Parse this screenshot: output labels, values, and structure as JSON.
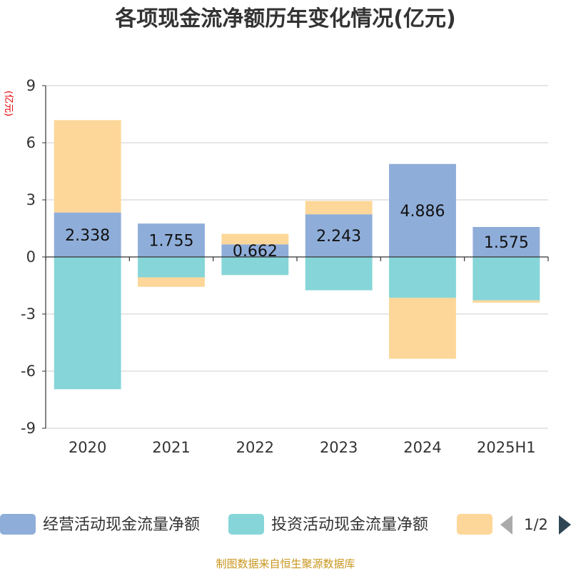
{
  "chart_data": {
    "type": "bar",
    "stacked": "diverging",
    "title": "各项现金流净额历年变化情况(亿元)",
    "ylabel": "(亿元)",
    "xlabel": "",
    "ylim": [
      -9,
      9
    ],
    "yticks": [
      9,
      6,
      3,
      0,
      -3,
      -6,
      -9
    ],
    "categories": [
      "2020",
      "2021",
      "2022",
      "2023",
      "2024",
      "2025H1"
    ],
    "grid": true,
    "legend_position": "bottom",
    "series": [
      {
        "name": "经营活动现金流量净额",
        "color": "#8fadd9",
        "values": [
          2.338,
          1.755,
          0.662,
          2.243,
          4.886,
          1.575
        ],
        "show_labels": true
      },
      {
        "name": "投资活动现金流量净额",
        "color": "#86d5d8",
        "values": [
          -6.95,
          -1.07,
          -0.95,
          -1.75,
          -2.15,
          -2.28
        ],
        "show_labels": false
      },
      {
        "name": "",
        "color": "#fdd799",
        "values": [
          4.85,
          -0.5,
          0.55,
          0.7,
          -3.2,
          -0.12
        ],
        "show_labels": false
      }
    ]
  },
  "legend": {
    "page": "1/2"
  },
  "source": "制图数据来自恒生聚源数据库"
}
